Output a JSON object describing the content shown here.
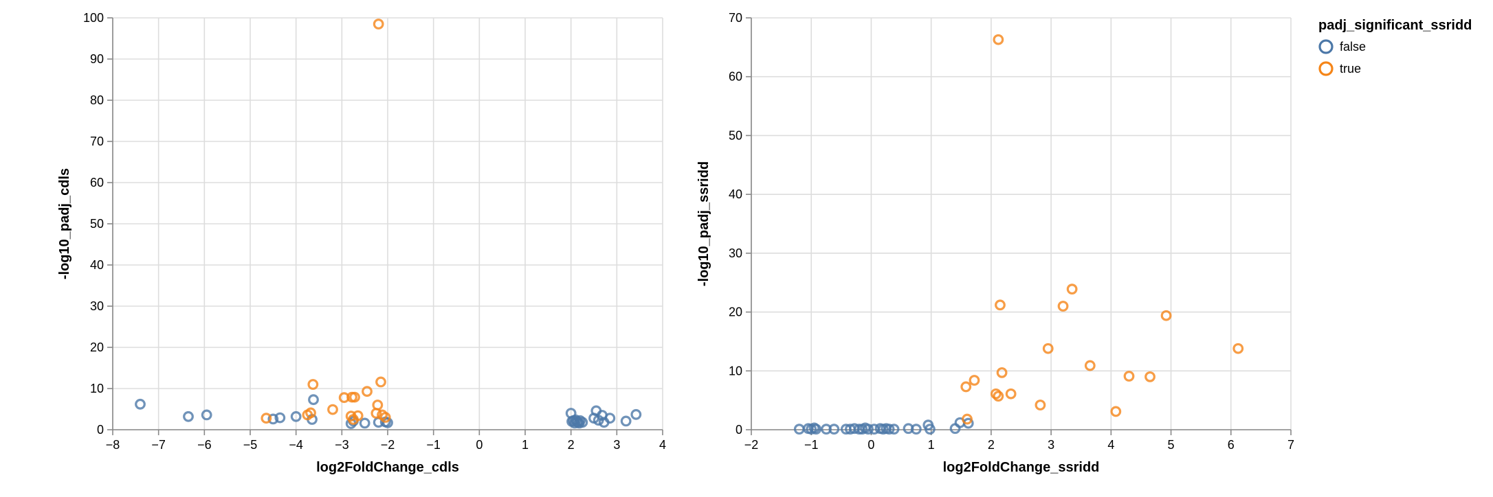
{
  "colors": {
    "false": "#4c78a8",
    "true": "#f58518"
  },
  "legend": {
    "title": "padj_significant_ssridd",
    "entries": [
      {
        "key": "false",
        "label": "false"
      },
      {
        "key": "true",
        "label": "true"
      }
    ]
  },
  "chart_data": [
    {
      "type": "scatter",
      "xlabel": "log2FoldChange_cdls",
      "ylabel": "-log10_padj_cdls",
      "xlim": [
        -8,
        4
      ],
      "ylim": [
        0,
        100
      ],
      "xticks": [
        -8,
        -7,
        -6,
        -5,
        -4,
        -3,
        -2,
        -1,
        0,
        1,
        2,
        3,
        4
      ],
      "yticks": [
        0,
        10,
        20,
        30,
        40,
        50,
        60,
        70,
        80,
        90,
        100
      ],
      "grid": true,
      "series": [
        {
          "key": "false",
          "points": [
            [
              -7.4,
              6.2
            ],
            [
              -6.35,
              3.2
            ],
            [
              -5.95,
              3.6
            ],
            [
              -4.5,
              2.6
            ],
            [
              -4.35,
              2.9
            ],
            [
              -4.0,
              3.2
            ],
            [
              -3.62,
              7.3
            ],
            [
              -3.65,
              2.5
            ],
            [
              -2.8,
              1.5
            ],
            [
              -2.75,
              2.1
            ],
            [
              -2.5,
              1.6
            ],
            [
              -2.2,
              1.8
            ],
            [
              -2.05,
              1.9
            ],
            [
              -2.0,
              1.7
            ],
            [
              2.0,
              4.0
            ],
            [
              2.02,
              2.0
            ],
            [
              2.05,
              2.2
            ],
            [
              2.08,
              1.6
            ],
            [
              2.1,
              2.4
            ],
            [
              2.13,
              2.0
            ],
            [
              2.15,
              1.8
            ],
            [
              2.18,
              1.6
            ],
            [
              2.2,
              2.2
            ],
            [
              2.25,
              1.8
            ],
            [
              2.5,
              2.8
            ],
            [
              2.55,
              4.6
            ],
            [
              2.6,
              2.3
            ],
            [
              2.68,
              3.5
            ],
            [
              2.72,
              1.8
            ],
            [
              2.85,
              2.8
            ],
            [
              3.2,
              2.1
            ],
            [
              3.42,
              3.7
            ]
          ]
        },
        {
          "key": "true",
          "points": [
            [
              -2.2,
              98.5
            ],
            [
              -4.65,
              2.8
            ],
            [
              -3.75,
              3.6
            ],
            [
              -3.68,
              4.1
            ],
            [
              -3.63,
              11.0
            ],
            [
              -3.2,
              4.9
            ],
            [
              -2.95,
              7.8
            ],
            [
              -2.78,
              7.9
            ],
            [
              -2.72,
              7.9
            ],
            [
              -2.8,
              3.3
            ],
            [
              -2.75,
              2.5
            ],
            [
              -2.65,
              3.4
            ],
            [
              -2.45,
              9.3
            ],
            [
              -2.25,
              4.0
            ],
            [
              -2.22,
              6.0
            ],
            [
              -2.15,
              11.6
            ],
            [
              -2.12,
              3.6
            ],
            [
              -2.05,
              3.0
            ]
          ]
        }
      ]
    },
    {
      "type": "scatter",
      "xlabel": "log2FoldChange_ssridd",
      "ylabel": "-log10_padj_ssridd",
      "xlim": [
        -2,
        7
      ],
      "ylim": [
        0,
        70
      ],
      "xticks": [
        -2,
        -1,
        0,
        1,
        2,
        3,
        4,
        5,
        6,
        7
      ],
      "yticks": [
        0,
        10,
        20,
        30,
        40,
        50,
        60,
        70
      ],
      "grid": true,
      "series": [
        {
          "key": "false",
          "points": [
            [
              -1.2,
              0.1
            ],
            [
              -1.05,
              0.2
            ],
            [
              -1.0,
              0.1
            ],
            [
              -0.95,
              0.3
            ],
            [
              -0.92,
              0.1
            ],
            [
              -0.75,
              0.1
            ],
            [
              -0.62,
              0.1
            ],
            [
              -0.42,
              0.1
            ],
            [
              -0.35,
              0.1
            ],
            [
              -0.28,
              0.2
            ],
            [
              -0.2,
              0.1
            ],
            [
              -0.15,
              0.1
            ],
            [
              -0.1,
              0.3
            ],
            [
              -0.05,
              0.1
            ],
            [
              0.05,
              0.1
            ],
            [
              0.15,
              0.2
            ],
            [
              0.2,
              0.1
            ],
            [
              0.25,
              0.2
            ],
            [
              0.3,
              0.1
            ],
            [
              0.38,
              0.1
            ],
            [
              0.62,
              0.2
            ],
            [
              0.75,
              0.1
            ],
            [
              0.95,
              0.8
            ],
            [
              0.98,
              0.1
            ],
            [
              1.4,
              0.2
            ],
            [
              1.48,
              1.2
            ],
            [
              1.62,
              1.1
            ]
          ]
        },
        {
          "key": "true",
          "points": [
            [
              2.12,
              66.3
            ],
            [
              2.15,
              21.2
            ],
            [
              2.18,
              9.7
            ],
            [
              1.58,
              7.3
            ],
            [
              1.72,
              8.4
            ],
            [
              1.6,
              1.8
            ],
            [
              2.08,
              6.1
            ],
            [
              2.12,
              5.7
            ],
            [
              2.33,
              6.1
            ],
            [
              2.82,
              4.2
            ],
            [
              2.95,
              13.8
            ],
            [
              3.2,
              21.0
            ],
            [
              3.35,
              23.9
            ],
            [
              3.65,
              10.9
            ],
            [
              4.08,
              3.1
            ],
            [
              4.3,
              9.1
            ],
            [
              4.65,
              9.0
            ],
            [
              4.92,
              19.4
            ],
            [
              6.12,
              13.8
            ]
          ]
        }
      ]
    }
  ]
}
